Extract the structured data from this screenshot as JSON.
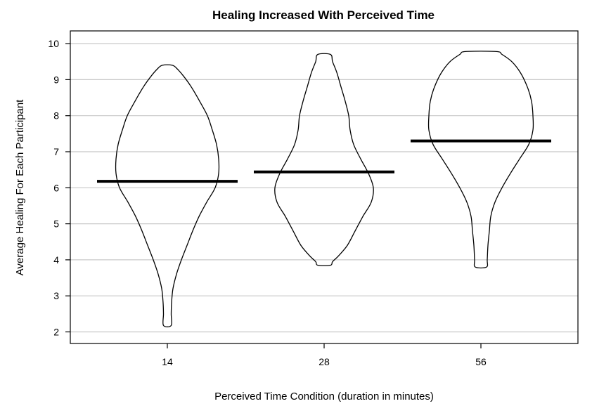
{
  "chart_data": {
    "type": "violin",
    "title": "Healing Increased With Perceived Time",
    "xlabel": "Perceived Time Condition (duration in minutes)",
    "ylabel": "Average Healing For Each Participant",
    "categories": [
      "14",
      "28",
      "56"
    ],
    "yticks": [
      2,
      3,
      4,
      5,
      6,
      7,
      8,
      9,
      10
    ],
    "ylim": [
      1.7,
      10.3
    ],
    "grid": true,
    "means": [
      6.18,
      6.44,
      7.3
    ],
    "violins": [
      {
        "category": "14",
        "mean": 6.18,
        "min": 2.18,
        "max": 9.4,
        "profile": [
          [
            9.4,
            0.07
          ],
          [
            9.3,
            0.14
          ],
          [
            9.1,
            0.23
          ],
          [
            8.8,
            0.34
          ],
          [
            8.4,
            0.46
          ],
          [
            8.0,
            0.57
          ],
          [
            7.6,
            0.64
          ],
          [
            7.2,
            0.7
          ],
          [
            6.8,
            0.73
          ],
          [
            6.4,
            0.73
          ],
          [
            6.0,
            0.68
          ],
          [
            5.6,
            0.56
          ],
          [
            5.2,
            0.45
          ],
          [
            4.8,
            0.36
          ],
          [
            4.4,
            0.28
          ],
          [
            4.0,
            0.2
          ],
          [
            3.6,
            0.13
          ],
          [
            3.2,
            0.08
          ],
          [
            2.8,
            0.06
          ],
          [
            2.5,
            0.055
          ],
          [
            2.18,
            0.055
          ]
        ]
      },
      {
        "category": "28",
        "mean": 6.44,
        "min": 3.85,
        "max": 9.7,
        "profile": [
          [
            9.7,
            0.09
          ],
          [
            9.5,
            0.12
          ],
          [
            9.2,
            0.18
          ],
          [
            8.8,
            0.24
          ],
          [
            8.4,
            0.3
          ],
          [
            8.0,
            0.35
          ],
          [
            7.6,
            0.37
          ],
          [
            7.2,
            0.42
          ],
          [
            6.8,
            0.52
          ],
          [
            6.4,
            0.63
          ],
          [
            6.0,
            0.7
          ],
          [
            5.6,
            0.67
          ],
          [
            5.2,
            0.55
          ],
          [
            4.8,
            0.44
          ],
          [
            4.4,
            0.33
          ],
          [
            4.1,
            0.2
          ],
          [
            3.95,
            0.12
          ],
          [
            3.85,
            0.09
          ]
        ]
      },
      {
        "category": "56",
        "mean": 7.3,
        "min": 3.8,
        "max": 9.78,
        "profile": [
          [
            9.78,
            0.22
          ],
          [
            9.7,
            0.3
          ],
          [
            9.5,
            0.44
          ],
          [
            9.2,
            0.56
          ],
          [
            8.8,
            0.66
          ],
          [
            8.4,
            0.72
          ],
          [
            8.0,
            0.74
          ],
          [
            7.6,
            0.74
          ],
          [
            7.2,
            0.68
          ],
          [
            6.8,
            0.55
          ],
          [
            6.4,
            0.42
          ],
          [
            6.0,
            0.3
          ],
          [
            5.6,
            0.2
          ],
          [
            5.2,
            0.14
          ],
          [
            4.8,
            0.12
          ],
          [
            4.4,
            0.1
          ],
          [
            4.0,
            0.09
          ],
          [
            3.8,
            0.08
          ]
        ]
      }
    ]
  }
}
